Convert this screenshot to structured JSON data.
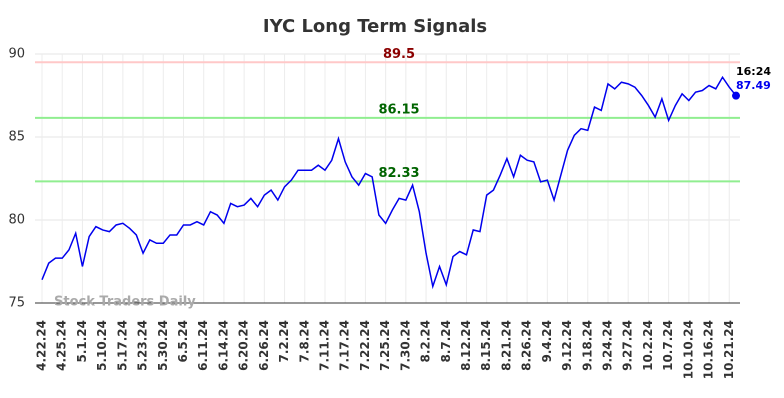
{
  "chart_data": {
    "type": "line",
    "title": "IYC Long Term Signals",
    "categories": [
      "4.22.24",
      null,
      null,
      "4.25.24",
      null,
      null,
      "5.1.24",
      null,
      null,
      "5.10.24",
      null,
      null,
      "5.17.24",
      null,
      null,
      "5.23.24",
      null,
      null,
      "5.30.24",
      null,
      null,
      "6.5.24",
      null,
      null,
      "6.11.24",
      null,
      null,
      "6.14.24",
      null,
      null,
      "6.20.24",
      null,
      null,
      "6.26.24",
      null,
      null,
      "7.2.24",
      null,
      null,
      "7.8.24",
      null,
      null,
      "7.11.24",
      null,
      null,
      "7.17.24",
      null,
      null,
      "7.22.24",
      null,
      null,
      "7.25.24",
      null,
      null,
      "7.30.24",
      null,
      null,
      "8.2.24",
      null,
      null,
      "8.7.24",
      null,
      null,
      "8.12.24",
      null,
      null,
      "8.15.24",
      null,
      null,
      "8.21.24",
      null,
      null,
      "8.26.24",
      null,
      null,
      "9.4.24",
      null,
      null,
      "9.12.24",
      null,
      null,
      "9.18.24",
      null,
      null,
      "9.24.24",
      null,
      null,
      "9.27.24",
      null,
      null,
      "10.2.24",
      null,
      null,
      "10.7.24",
      null,
      null,
      "10.10.24",
      null,
      null,
      "10.16.24",
      null,
      null,
      "10.21.24",
      null
    ],
    "values": [
      76.4,
      77.4,
      77.7,
      77.7,
      78.2,
      79.2,
      77.2,
      79.0,
      79.6,
      79.4,
      79.3,
      79.7,
      79.8,
      79.5,
      79.1,
      78.0,
      78.8,
      78.6,
      78.6,
      79.1,
      79.1,
      79.7,
      79.7,
      79.9,
      79.7,
      80.5,
      80.3,
      79.8,
      81.0,
      80.8,
      80.9,
      81.3,
      80.8,
      81.5,
      81.8,
      81.2,
      82.0,
      82.4,
      83.0,
      83.0,
      83.0,
      83.3,
      83.0,
      83.6,
      84.9,
      83.5,
      82.6,
      82.1,
      82.8,
      82.6,
      80.3,
      79.8,
      80.6,
      81.3,
      81.2,
      82.1,
      80.5,
      78.0,
      76.0,
      77.2,
      76.1,
      77.8,
      78.1,
      77.9,
      79.4,
      79.3,
      81.5,
      81.8,
      82.7,
      83.7,
      82.6,
      83.9,
      83.6,
      83.5,
      82.3,
      82.4,
      81.2,
      82.7,
      84.2,
      85.1,
      85.5,
      85.4,
      86.8,
      86.6,
      88.2,
      87.9,
      88.3,
      88.2,
      88.0,
      87.5,
      86.9,
      86.2,
      87.3,
      86.0,
      86.9,
      87.6,
      87.2,
      87.7,
      87.8,
      88.1,
      87.9,
      88.6,
      88.0,
      87.49
    ],
    "color": "#0000ee",
    "last_time": "16:24",
    "hlines": [
      {
        "value": 89.5,
        "color": "#ffc8c8",
        "label_color": "#8b0000"
      },
      {
        "value": 86.15,
        "color": "#90ee90",
        "label_color": "#006400"
      },
      {
        "value": 82.33,
        "color": "#90ee90",
        "label_color": "#006400"
      }
    ],
    "watermark": "Stock Traders Daily",
    "ylim": [
      75,
      90
    ],
    "yticks": [
      75,
      80,
      85,
      90
    ],
    "grid": true
  }
}
